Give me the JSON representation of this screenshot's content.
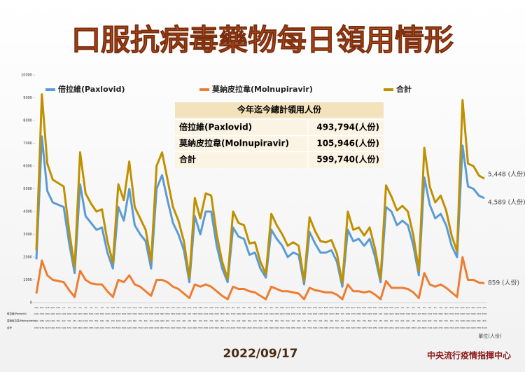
{
  "chart_data": {
    "type": "line",
    "title": "口服抗病毒藥物每日領用情形",
    "categories": [
      "6/26",
      "6/27",
      "6/28",
      "6/29",
      "6/30",
      "7/1",
      "7/2",
      "7/3",
      "7/4",
      "7/5",
      "7/6",
      "7/7",
      "7/8",
      "7/9",
      "7/10",
      "7/11",
      "7/12",
      "7/13",
      "7/14",
      "7/15",
      "7/16",
      "7/17",
      "7/18",
      "7/19",
      "7/20",
      "7/21",
      "7/22",
      "7/23",
      "7/24",
      "7/25",
      "7/26",
      "7/27",
      "7/28",
      "7/29",
      "7/30",
      "7/31",
      "8/1",
      "8/2",
      "8/3",
      "8/4",
      "8/5",
      "8/6",
      "8/7",
      "8/8",
      "8/9",
      "8/10",
      "8/11",
      "8/12",
      "8/13",
      "8/14",
      "8/15",
      "8/16",
      "8/17",
      "8/18",
      "8/19",
      "8/20",
      "8/21",
      "8/22",
      "8/23",
      "8/24",
      "8/25",
      "8/26",
      "8/27",
      "8/28",
      "8/29",
      "8/30",
      "8/31",
      "9/1",
      "9/2",
      "9/3",
      "9/4",
      "9/5",
      "9/6",
      "9/7",
      "9/8",
      "9/9",
      "9/10",
      "9/11",
      "9/12",
      "9/13",
      "9/14",
      "9/15",
      "9/16"
    ],
    "series": [
      {
        "name": "倍拉維(Paxlovid)",
        "color": "#5b9bd5",
        "last_label": "4,589 (人份)",
        "values": [
          1900,
          7300,
          4900,
          4400,
          4300,
          4200,
          2600,
          1300,
          5200,
          3800,
          3500,
          3200,
          3300,
          2200,
          1500,
          4200,
          3600,
          5000,
          3400,
          3000,
          2700,
          1500,
          5000,
          5600,
          4500,
          3500,
          3000,
          2300,
          900,
          3800,
          3000,
          4000,
          4000,
          2500,
          1500,
          900,
          3300,
          2900,
          2800,
          2100,
          2200,
          1500,
          1100,
          3200,
          2800,
          2500,
          2000,
          2200,
          2100,
          800,
          3100,
          2600,
          2200,
          2200,
          2300,
          1800,
          700,
          3200,
          2700,
          2800,
          2500,
          2800,
          2000,
          900,
          4200,
          4000,
          3400,
          3600,
          3400,
          2500,
          1200,
          5500,
          4300,
          3700,
          3900,
          3400,
          2500,
          2000,
          6900,
          5100,
          5000,
          4700,
          4589
        ]
      },
      {
        "name": "莫納皮拉韋(Molnupiravir)",
        "color": "#ed7d31",
        "last_label": "859 (人份)",
        "values": [
          400,
          1850,
          1200,
          1000,
          950,
          900,
          550,
          250,
          1400,
          1000,
          850,
          800,
          800,
          500,
          250,
          1000,
          900,
          1200,
          800,
          700,
          500,
          300,
          1000,
          1000,
          900,
          700,
          600,
          400,
          200,
          800,
          700,
          800,
          700,
          500,
          300,
          150,
          700,
          600,
          600,
          500,
          450,
          300,
          150,
          700,
          600,
          500,
          500,
          450,
          400,
          150,
          650,
          550,
          500,
          450,
          450,
          350,
          150,
          800,
          500,
          500,
          450,
          500,
          350,
          150,
          950,
          650,
          650,
          650,
          600,
          450,
          200,
          1300,
          800,
          700,
          800,
          650,
          450,
          250,
          2000,
          1000,
          1000,
          880,
          859
        ]
      },
      {
        "name": "合計",
        "color": "#bf9000",
        "last_label": "5,448 (人份)",
        "values": [
          2300,
          9150,
          6100,
          5400,
          5250,
          5100,
          3150,
          1550,
          6600,
          4800,
          4350,
          4000,
          4100,
          2700,
          1750,
          5200,
          4500,
          6200,
          4200,
          3700,
          3200,
          1800,
          6000,
          6600,
          5400,
          4200,
          3600,
          2700,
          1100,
          4600,
          3700,
          4800,
          4700,
          3000,
          1800,
          1050,
          4000,
          3500,
          3400,
          2600,
          2650,
          1800,
          1250,
          3900,
          3400,
          3000,
          2500,
          2650,
          2500,
          950,
          3750,
          3150,
          2700,
          2650,
          2750,
          2150,
          850,
          4000,
          3200,
          3300,
          2950,
          3300,
          2350,
          1050,
          5150,
          4650,
          4050,
          4250,
          4000,
          2950,
          1400,
          6800,
          5100,
          4400,
          4700,
          4050,
          2950,
          2250,
          8900,
          6100,
          6000,
          5580,
          5448
        ]
      }
    ],
    "ylim": [
      0,
      10000
    ],
    "yticks": [
      0,
      1000,
      2000,
      3000,
      4000,
      5000,
      6000,
      7000,
      8000,
      9000,
      10000
    ],
    "grid": false,
    "unit_label": "單位(人份)",
    "summary_table": {
      "title": "今年迄今總計領用人份",
      "rows": [
        [
          "倍拉維(Paxlovid)",
          "493,794(人份)"
        ],
        [
          "莫納皮拉韋(Molnupiravir)",
          "105,946(人份)"
        ],
        [
          "合計",
          "599,740(人份)"
        ]
      ]
    },
    "date": "2022/09/17",
    "source": "中央流行疫情指揮中心"
  }
}
